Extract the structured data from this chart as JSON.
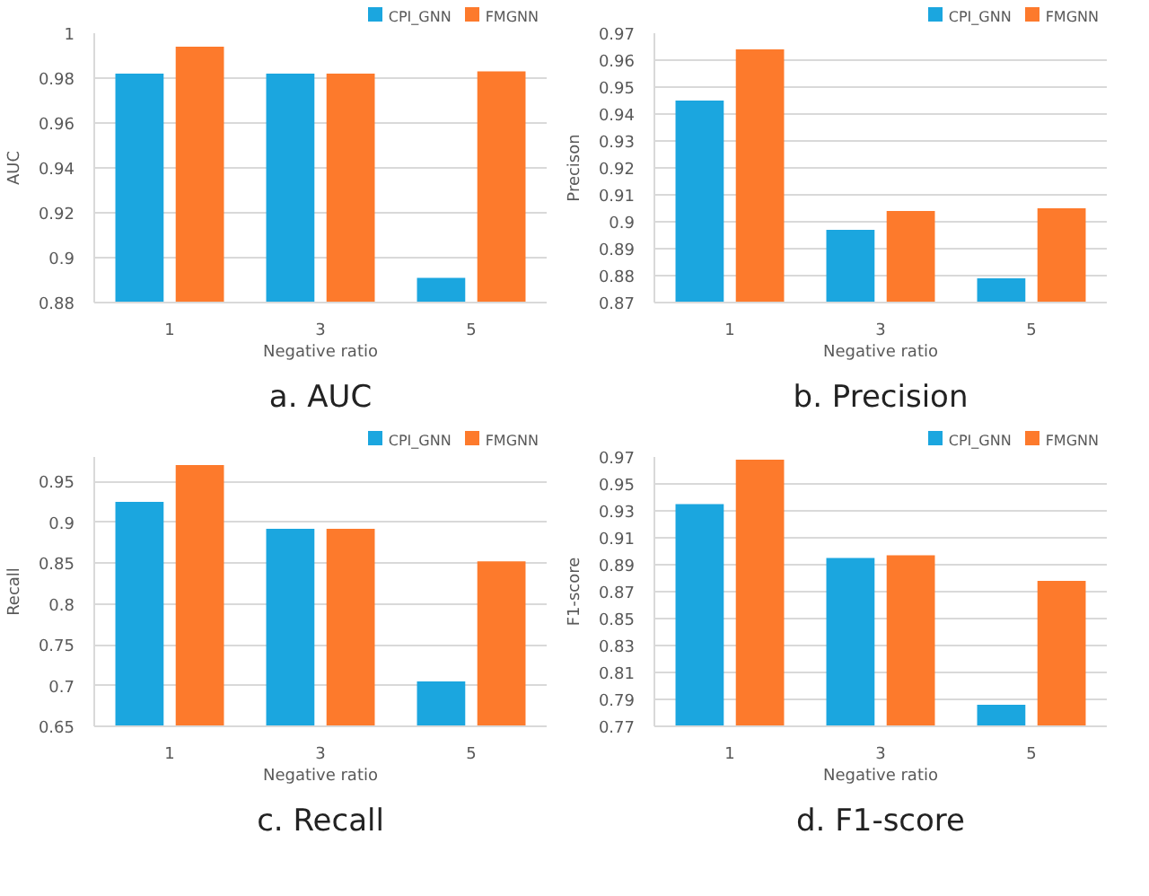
{
  "chart_data": [
    {
      "type": "bar",
      "title": "a. AUC",
      "xlabel": "Negative ratio",
      "ylabel": "AUC",
      "categories": [
        "1",
        "3",
        "5"
      ],
      "series": [
        {
          "name": "CPI_GNN",
          "color": "#1ba6df",
          "values": [
            0.982,
            0.982,
            0.891
          ]
        },
        {
          "name": "FMGNN",
          "color": "#fd7a2c",
          "values": [
            0.994,
            0.982,
            0.983
          ]
        }
      ],
      "ylim": [
        0.88,
        1
      ],
      "yticks": [
        0.88,
        0.9,
        0.92,
        0.94,
        0.96,
        0.98,
        1
      ],
      "grid": "y",
      "legend": "top right"
    },
    {
      "type": "bar",
      "title": "b. Precision",
      "xlabel": "Negative ratio",
      "ylabel": "Precison",
      "categories": [
        "1",
        "3",
        "5"
      ],
      "series": [
        {
          "name": "CPI_GNN",
          "color": "#1ba6df",
          "values": [
            0.945,
            0.897,
            0.879
          ]
        },
        {
          "name": "FMGNN",
          "color": "#fd7a2c",
          "values": [
            0.964,
            0.904,
            0.905
          ]
        }
      ],
      "ylim": [
        0.87,
        0.97
      ],
      "yticks": [
        0.87,
        0.88,
        0.89,
        0.9,
        0.91,
        0.92,
        0.93,
        0.94,
        0.95,
        0.96,
        0.97
      ],
      "grid": "y",
      "legend": "top right"
    },
    {
      "type": "bar",
      "title": "c. Recall",
      "xlabel": "Negative ratio",
      "ylabel": "Recall",
      "categories": [
        "1",
        "3",
        "5"
      ],
      "series": [
        {
          "name": "CPI_GNN",
          "color": "#1ba6df",
          "values": [
            0.925,
            0.892,
            0.705
          ]
        },
        {
          "name": "FMGNN",
          "color": "#fd7a2c",
          "values": [
            0.97,
            0.892,
            0.852
          ]
        }
      ],
      "ylim": [
        0.65,
        0.98
      ],
      "yticks": [
        0.65,
        0.7,
        0.75,
        0.8,
        0.85,
        0.9,
        0.95
      ],
      "grid": "y",
      "legend": "top right"
    },
    {
      "type": "bar",
      "title": "d. F1-score",
      "xlabel": "Negative ratio",
      "ylabel": "F1-score",
      "categories": [
        "1",
        "3",
        "5"
      ],
      "series": [
        {
          "name": "CPI_GNN",
          "color": "#1ba6df",
          "values": [
            0.935,
            0.895,
            0.786
          ]
        },
        {
          "name": "FMGNN",
          "color": "#fd7a2c",
          "values": [
            0.968,
            0.897,
            0.878
          ]
        }
      ],
      "ylim": [
        0.77,
        0.97
      ],
      "yticks": [
        0.77,
        0.79,
        0.81,
        0.83,
        0.85,
        0.87,
        0.89,
        0.91,
        0.93,
        0.95,
        0.97
      ],
      "grid": "y",
      "legend": "top right"
    }
  ]
}
